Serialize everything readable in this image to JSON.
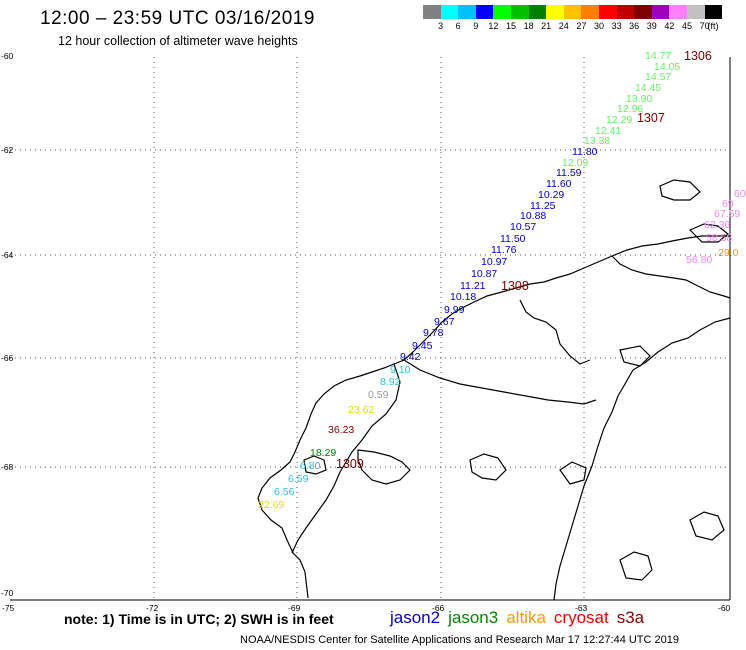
{
  "header": {
    "title": "12:00 – 23:59 UTC 03/16/2019",
    "subtitle": "12 hour collection of altimeter wave heights"
  },
  "colorbar": {
    "colors": [
      "#808080",
      "#00ffff",
      "#00c0ff",
      "#0000ff",
      "#00ff00",
      "#00c000",
      "#008000",
      "#ffff00",
      "#ffc000",
      "#ff8000",
      "#ff0000",
      "#c00000",
      "#800000",
      "#a000c0",
      "#ff80ff",
      "#c0c0c0",
      "#000000"
    ],
    "ticks": [
      "3",
      "6",
      "9",
      "12",
      "15",
      "18",
      "21",
      "24",
      "27",
      "30",
      "33",
      "36",
      "39",
      "42",
      "45",
      "70"
    ],
    "unit": "(ft)"
  },
  "axes": {
    "y_labels": [
      "-60",
      "-62",
      "-64",
      "-66",
      "-68",
      "-70"
    ],
    "x_labels": [
      "-75",
      "-72",
      "-69",
      "-66",
      "-63",
      "-60"
    ]
  },
  "passes": [
    "1306",
    "1307",
    "1308",
    "1309"
  ],
  "observations": [
    {
      "v": "14.77",
      "c": "#66ee66"
    },
    {
      "v": "14.05",
      "c": "#66ee66"
    },
    {
      "v": "14.57",
      "c": "#66ee66"
    },
    {
      "v": "14.45",
      "c": "#66ee66"
    },
    {
      "v": "13.90",
      "c": "#66ee66"
    },
    {
      "v": "12.96",
      "c": "#66ee66"
    },
    {
      "v": "12.29",
      "c": "#66ee66"
    },
    {
      "v": "12.41",
      "c": "#66ee66"
    },
    {
      "v": "13.38",
      "c": "#66ee66"
    },
    {
      "v": "11.80",
      "c": "#0000cc"
    },
    {
      "v": "12.09",
      "c": "#66ee66"
    },
    {
      "v": "11.59",
      "c": "#0000cc"
    },
    {
      "v": "11.60",
      "c": "#0000cc"
    },
    {
      "v": "10.29",
      "c": "#0000cc"
    },
    {
      "v": "11.25",
      "c": "#0000cc"
    },
    {
      "v": "10.88",
      "c": "#0000cc"
    },
    {
      "v": "10.57",
      "c": "#0000cc"
    },
    {
      "v": "11.50",
      "c": "#0000cc"
    },
    {
      "v": "11.76",
      "c": "#0000cc"
    },
    {
      "v": "10.97",
      "c": "#0000cc"
    },
    {
      "v": "10.87",
      "c": "#0000cc"
    },
    {
      "v": "11.21",
      "c": "#0000cc"
    },
    {
      "v": "10.18",
      "c": "#0000cc"
    },
    {
      "v": "9.99",
      "c": "#0000cc"
    },
    {
      "v": "9.67",
      "c": "#0000cc"
    },
    {
      "v": "9.78",
      "c": "#0000cc"
    },
    {
      "v": "9.45",
      "c": "#0000cc"
    },
    {
      "v": "9.42",
      "c": "#0000cc"
    },
    {
      "v": "9.10",
      "c": "#33bbdd"
    },
    {
      "v": "8.92",
      "c": "#33bbdd"
    },
    {
      "v": "0.59",
      "c": "#999999"
    },
    {
      "v": "23.62",
      "c": "#dddd00"
    },
    {
      "v": "36.23",
      "c": "#800000"
    },
    {
      "v": "18.29",
      "c": "#008000"
    },
    {
      "v": "6.80",
      "c": "#33bbdd"
    },
    {
      "v": "6.59",
      "c": "#33bbdd"
    },
    {
      "v": "6.56",
      "c": "#33bbdd"
    },
    {
      "v": "22.69",
      "c": "#dddd00"
    },
    {
      "v": "60",
      "c": "#ee88ee"
    },
    {
      "v": "69",
      "c": "#ee88ee"
    },
    {
      "v": "67.59",
      "c": "#ee88ee"
    },
    {
      "v": "62.36",
      "c": "#ee88ee"
    },
    {
      "v": "58.58",
      "c": "#ee88ee"
    },
    {
      "v": "56.80",
      "c": "#ee88ee"
    },
    {
      "v": "29.0",
      "c": "#ff9900"
    }
  ],
  "footer": {
    "note": "note: 1) Time is in UTC; 2) SWH is in feet",
    "satellites": [
      {
        "name": "jason2",
        "color": "#0000cc"
      },
      {
        "name": "jason3",
        "color": "#008800"
      },
      {
        "name": "altika",
        "color": "#ff9900"
      },
      {
        "name": "cryosat",
        "color": "#ee0000"
      },
      {
        "name": "s3a",
        "color": "#880000"
      }
    ],
    "credit": "NOAA/NESDIS Center for Satellite Applications and Research    Mar 17 12:27:44 UTC 2019"
  }
}
